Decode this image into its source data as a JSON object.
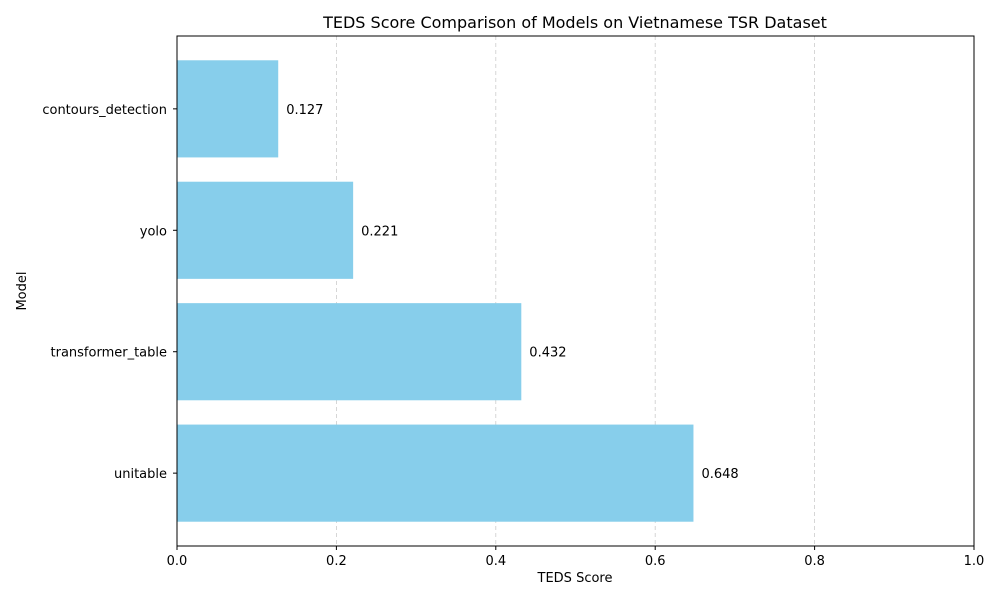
{
  "chart_data": {
    "type": "bar",
    "orientation": "horizontal",
    "title": "TEDS Score Comparison of Models on Vietnamese TSR Dataset",
    "xlabel": "TEDS Score",
    "ylabel": "Model",
    "categories": [
      "unitable",
      "transformer_table",
      "yolo",
      "contours_detection"
    ],
    "values": [
      0.648,
      0.432,
      0.221,
      0.127
    ],
    "value_labels": [
      "0.648",
      "0.432",
      "0.221",
      "0.127"
    ],
    "xlim": [
      0,
      1
    ],
    "xticks": [
      0.0,
      0.2,
      0.4,
      0.6,
      0.8,
      1.0
    ],
    "xtick_labels": [
      "0.0",
      "0.2",
      "0.4",
      "0.6",
      "0.8",
      "1.0"
    ],
    "grid": "x-dashed",
    "bar_color": "#87CEEB",
    "grid_color": "#cccccc"
  }
}
